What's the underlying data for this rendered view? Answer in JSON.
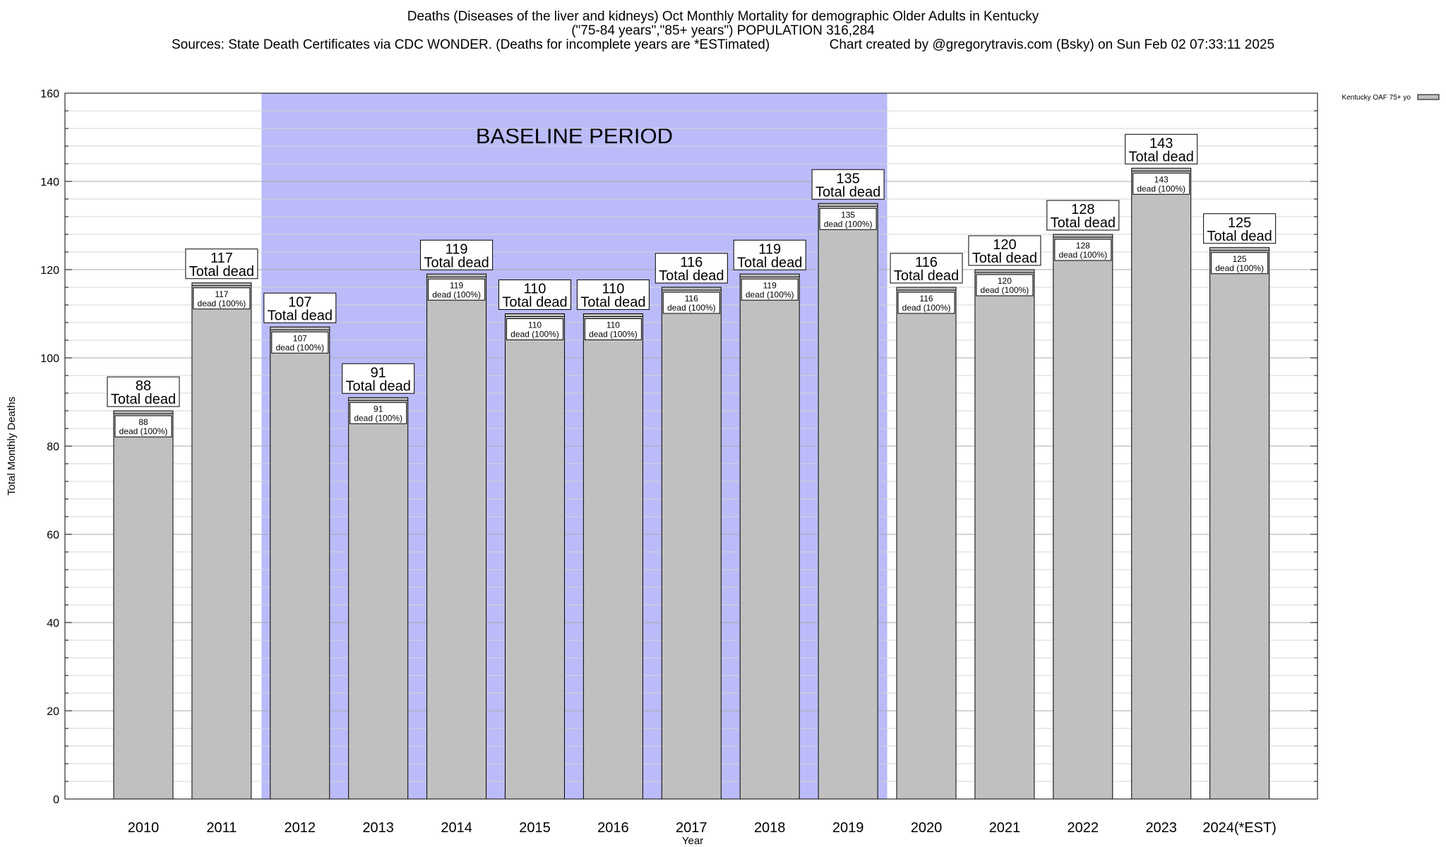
{
  "title": {
    "line1": "Deaths (Diseases of the liver and kidneys) Oct Monthly Mortality for demographic Older Adults in Kentucky",
    "line2": "(\"75-84 years\",\"85+ years\") POPULATION 316,284",
    "line3": "Sources: State Death Certificates via CDC WONDER. (Deaths for incomplete years are *ESTimated)                Chart created by @gregorytravis.com (Bsky) on Sun Feb 02 07:33:11 2025"
  },
  "chart_data": {
    "type": "bar",
    "categories": [
      "2010",
      "2011",
      "2012",
      "2013",
      "2014",
      "2015",
      "2016",
      "2017",
      "2018",
      "2019",
      "2020",
      "2021",
      "2022",
      "2023",
      "2024(*EST)"
    ],
    "series": [
      {
        "name": "Kentucky OAF 75+ yo",
        "values": [
          88,
          117,
          107,
          91,
          119,
          110,
          110,
          116,
          119,
          135,
          116,
          120,
          128,
          143,
          125
        ],
        "color": "#c0c0c0"
      }
    ],
    "xlabel": "Year",
    "ylabel": "Total Monthly Deaths",
    "ylim": [
      0,
      160
    ],
    "yticks": [
      0,
      20,
      40,
      60,
      80,
      100,
      120,
      140,
      160
    ],
    "grid": true,
    "legend_position": "top-right",
    "baseline": {
      "label": "BASELINE PERIOD",
      "from": "2012",
      "to": "2019",
      "color": "#bbbbf9"
    },
    "top_label_suffix": "Total dead",
    "inner_label_suffix": "dead (100%)"
  }
}
